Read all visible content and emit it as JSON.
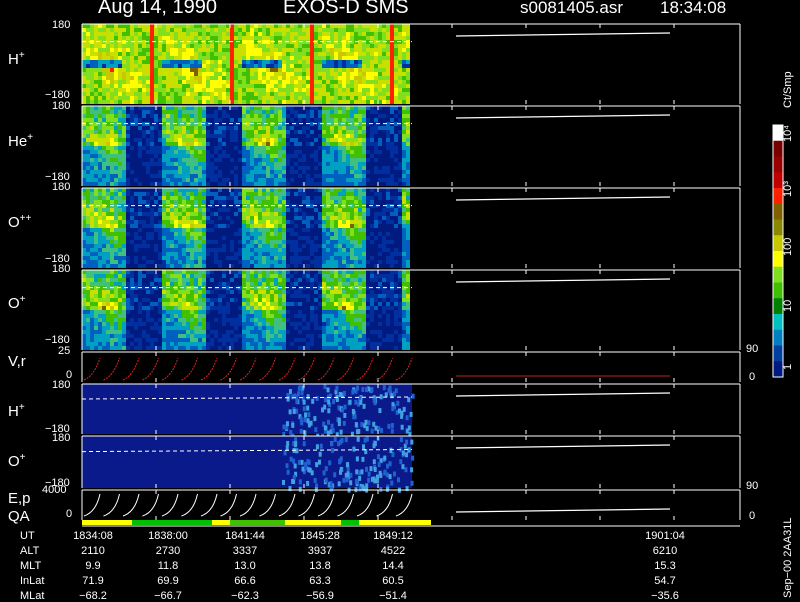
{
  "header": {
    "date": "Aug 14, 1990",
    "instrument": "EXOS-D SMS",
    "file": "s0081405.asr",
    "time": "18:34:08"
  },
  "panels": [
    {
      "id": "h-plus",
      "label": "H",
      "sup": "+",
      "ymax": "180",
      "ymin": "−180"
    },
    {
      "id": "he-plus",
      "label": "He",
      "sup": "+",
      "ymax": "180",
      "ymin": "−180"
    },
    {
      "id": "o-plusplus",
      "label": "O",
      "sup": "++",
      "ymax": "180",
      "ymin": "−180"
    },
    {
      "id": "o-plus",
      "label": "O",
      "sup": "+",
      "ymax": "180",
      "ymin": "−180"
    },
    {
      "id": "vr",
      "label": "V,r",
      "sup": "",
      "ymax": "25",
      "ymin": "0",
      "rmax": "90",
      "rmin": "0"
    },
    {
      "id": "h-plus-2",
      "label": "H",
      "sup": "+",
      "ymax": "180",
      "ymin": "−180"
    },
    {
      "id": "o-plus-2",
      "label": "O",
      "sup": "+",
      "ymax": "180",
      "ymin": "−180"
    },
    {
      "id": "ep",
      "label": "E,p",
      "sup": "",
      "ymax": "4000",
      "ymin": "0",
      "rmax": "90",
      "rmin": "0"
    },
    {
      "id": "qa",
      "label": "QA",
      "sup": ""
    }
  ],
  "colorbar": {
    "unit": "Ct/Smp",
    "ticks": [
      "10⁴",
      "10³",
      "100",
      "10",
      "1"
    ],
    "colors": [
      "#ffffff",
      "#7a0000",
      "#9a0000",
      "#c00000",
      "#ff2000",
      "#806000",
      "#8a8a00",
      "#c8c800",
      "#ffff00",
      "#80e020",
      "#40c000",
      "#008000",
      "#00c0c0",
      "#0080c0",
      "#0040a0",
      "#001a80"
    ]
  },
  "side_note": "Sep−00 2AA31L",
  "ephemeris": {
    "rows": [
      {
        "label": "UT",
        "values": [
          "1834:08",
          "1838:00",
          "1841:44",
          "1845:28",
          "1849:12",
          "1901:04"
        ]
      },
      {
        "label": "ALT",
        "values": [
          "2110",
          "2730",
          "3337",
          "3937",
          "4522",
          "6210"
        ]
      },
      {
        "label": "MLT",
        "values": [
          "9.9",
          "11.8",
          "13.0",
          "13.8",
          "14.4",
          "15.3"
        ]
      },
      {
        "label": "InLat",
        "values": [
          "71.9",
          "69.9",
          "66.6",
          "63.3",
          "60.5",
          "54.7"
        ]
      },
      {
        "label": "MLat",
        "values": [
          "−68.2",
          "−66.7",
          "−62.3",
          "−56.9",
          "−51.4",
          "−35.6"
        ]
      }
    ]
  },
  "chart_data": {
    "type": "heatmap",
    "title": "Aug 14, 1990 EXOS-D SMS",
    "xlabel": "UT",
    "x_ticks": [
      "1834:08",
      "1838:00",
      "1841:44",
      "1845:28",
      "1849:12",
      "1901:04"
    ],
    "series": [
      {
        "name": "H+",
        "ylim": [
          -180,
          180
        ]
      },
      {
        "name": "He+",
        "ylim": [
          -180,
          180
        ]
      },
      {
        "name": "O++",
        "ylim": [
          -180,
          180
        ]
      },
      {
        "name": "O+",
        "ylim": [
          -180,
          180
        ]
      },
      {
        "name": "V,r",
        "ylim": [
          0,
          25
        ],
        "right_ylim": [
          0,
          90
        ]
      },
      {
        "name": "H+",
        "ylim": [
          -180,
          180
        ]
      },
      {
        "name": "O+",
        "ylim": [
          -180,
          180
        ]
      },
      {
        "name": "E,p",
        "ylim": [
          0,
          4000
        ],
        "right_ylim": [
          0,
          90
        ]
      }
    ],
    "colorscale": {
      "unit": "Ct/Smp",
      "range": [
        1,
        10000
      ],
      "scale": "log"
    }
  }
}
